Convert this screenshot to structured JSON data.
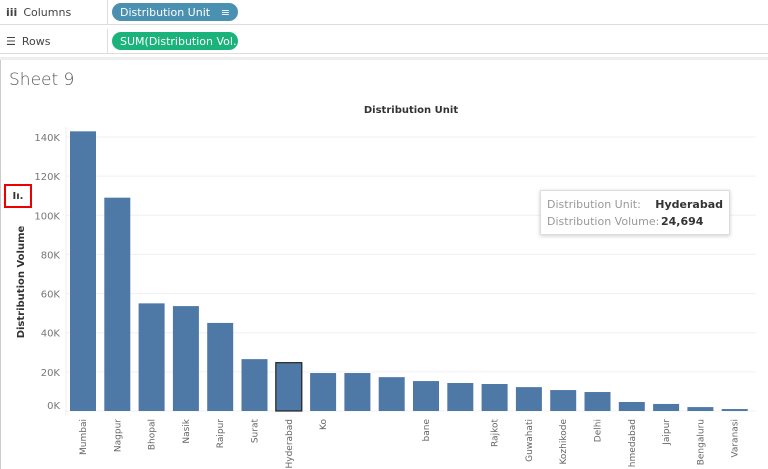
{
  "shelves": {
    "columns": {
      "label": "Columns",
      "icon": "columns-icon",
      "pill": "Distribution Unit",
      "pill_color": "#4a90b0"
    },
    "rows": {
      "label": "Rows",
      "icon": "rows-icon",
      "pill": "SUM(Distribution Vol..",
      "pill_color": "#1ab37a"
    }
  },
  "sheet": {
    "title": "Sheet 9"
  },
  "chart_data": {
    "type": "bar",
    "title": "Distribution Unit",
    "ylabel": "Distribution Volume",
    "ylim": [
      0,
      140000
    ],
    "yticks": [
      "0K",
      "20K",
      "40K",
      "60K",
      "80K",
      "100K",
      "120K",
      "140K"
    ],
    "grid": true,
    "bar_color": "#4e79a7",
    "categories": [
      "Mumbai",
      "Nagpur",
      "Bhopal",
      "Nasik",
      "Raipur",
      "Surat",
      "Hyderabad",
      "Ko",
      "",
      "",
      "bane",
      "",
      "Rajkot",
      "Guwahati",
      "Kozhikode",
      "Delhi",
      "hmedabad",
      "Jaipur",
      "Bengaluru",
      "Varanasi"
    ],
    "values": [
      142900,
      109000,
      55000,
      53600,
      45000,
      26500,
      24694,
      19400,
      19400,
      17300,
      15300,
      14300,
      13800,
      12200,
      10700,
      9700,
      4600,
      3600,
      2000,
      1000
    ],
    "highlighted": "Hyderabad"
  },
  "tooltip": {
    "unit_key": "Distribution Unit:",
    "unit_value": "Hyderabad",
    "volume_key": "Distribution Volume:",
    "volume_value": "24,694"
  },
  "highlight_icon": "bar-chart-icon"
}
